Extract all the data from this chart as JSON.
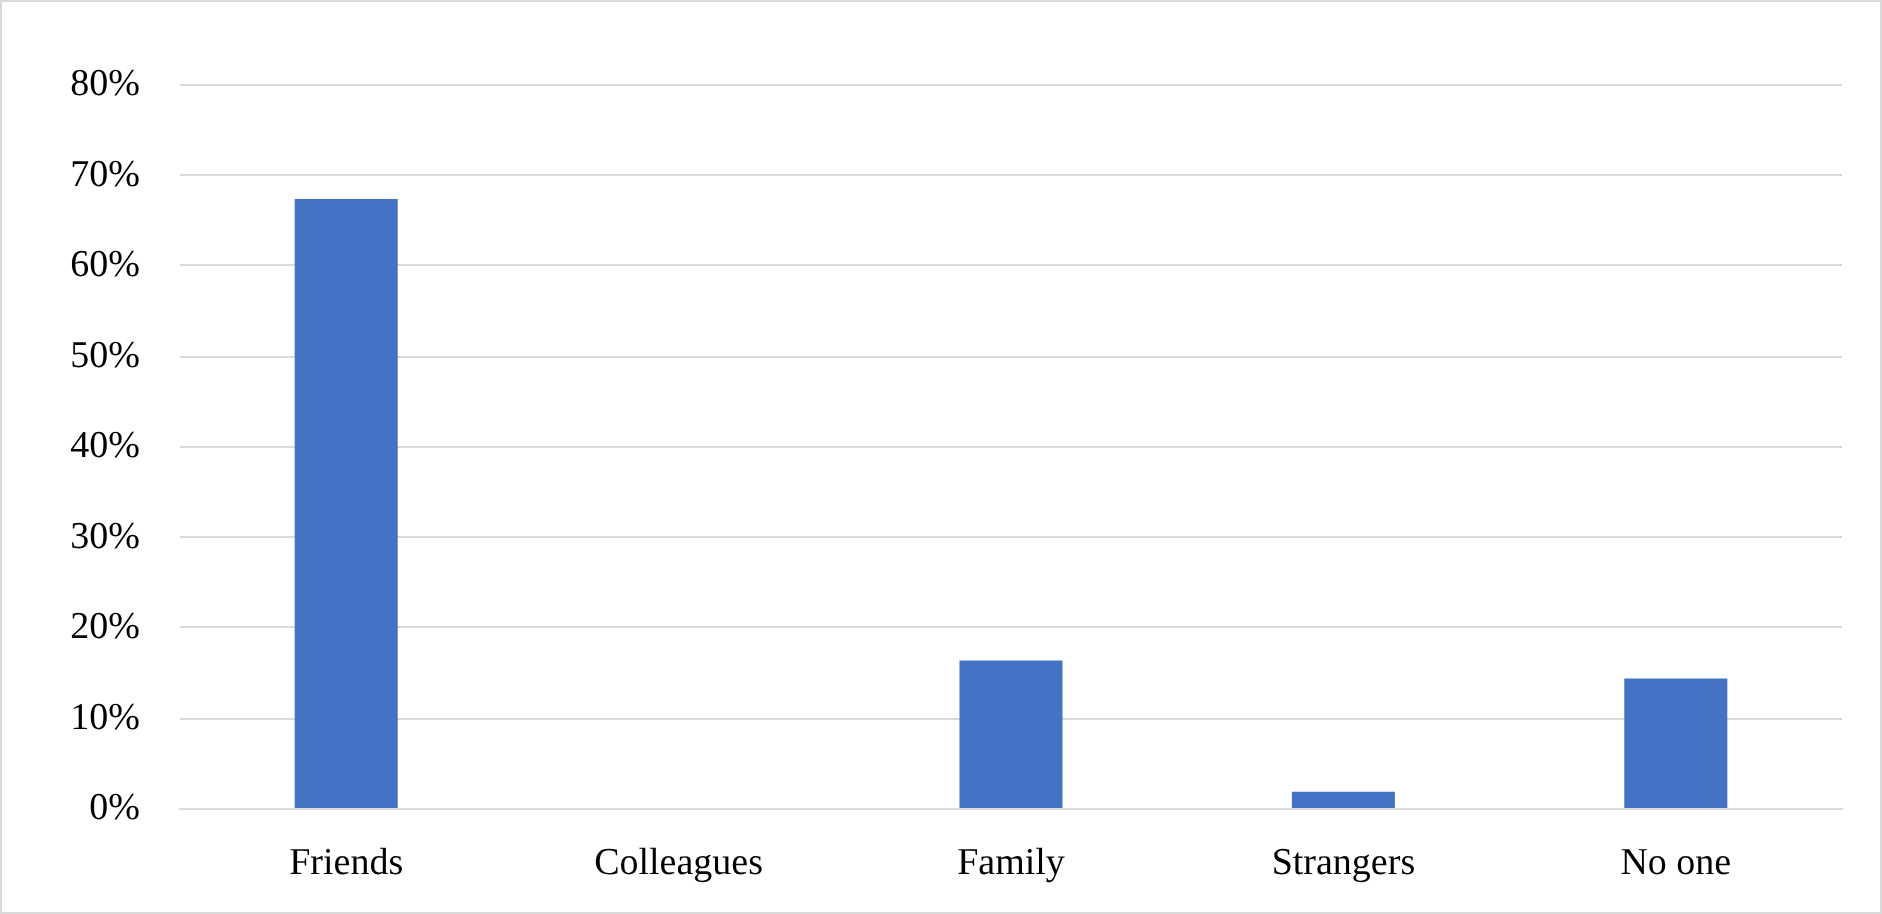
{
  "chart_data": {
    "type": "bar",
    "categories": [
      "Friends",
      "Colleagues",
      "Family",
      "Strangers",
      "No one"
    ],
    "values": [
      67.3,
      0,
      16.3,
      1.8,
      14.3
    ],
    "color": "#4472c4",
    "ylim": [
      0,
      80
    ],
    "yticks": [
      {
        "value": 0,
        "label": "0%"
      },
      {
        "value": 10,
        "label": "10%"
      },
      {
        "value": 20,
        "label": "20%"
      },
      {
        "value": 30,
        "label": "30%"
      },
      {
        "value": 40,
        "label": "40%"
      },
      {
        "value": 50,
        "label": "50%"
      },
      {
        "value": 60,
        "label": "60%"
      },
      {
        "value": 70,
        "label": "70%"
      },
      {
        "value": 80,
        "label": "80%"
      }
    ],
    "grid": "y"
  }
}
